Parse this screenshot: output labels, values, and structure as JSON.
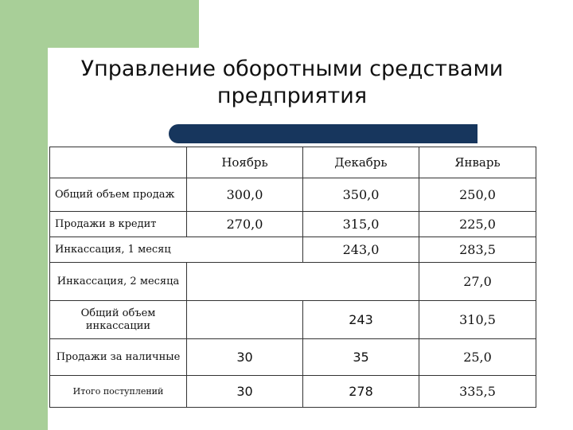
{
  "slide": {
    "title_line1": "Управление оборотными средствами",
    "title_line2": "предприятия"
  },
  "table": {
    "columns": [
      "",
      "Ноябрь",
      "Декабрь",
      "Январь"
    ],
    "rows": [
      {
        "label": "Общий объем продаж",
        "values": [
          "300,0",
          "350,0",
          "250,0"
        ]
      },
      {
        "label": "Продажи в кредит",
        "values": [
          "270,0",
          "315,0",
          "225,0"
        ]
      },
      {
        "label": "Инкассация, 1 месяц",
        "values": [
          "",
          "243,0",
          "283,5"
        ]
      },
      {
        "label": "Инкассация, 2 месяца",
        "values": [
          "",
          "",
          "27,0"
        ]
      },
      {
        "label": "Общий объем инкассации",
        "values": [
          "",
          "243",
          "310,5"
        ]
      },
      {
        "label": "Продажи за наличные",
        "values": [
          "30",
          "35",
          "25,0"
        ]
      },
      {
        "label": "Итого поступлений",
        "values": [
          "30",
          "278",
          "335,5"
        ]
      }
    ]
  },
  "colors": {
    "accent_green": "#a8cf98",
    "bar_navy": "#17365d"
  }
}
